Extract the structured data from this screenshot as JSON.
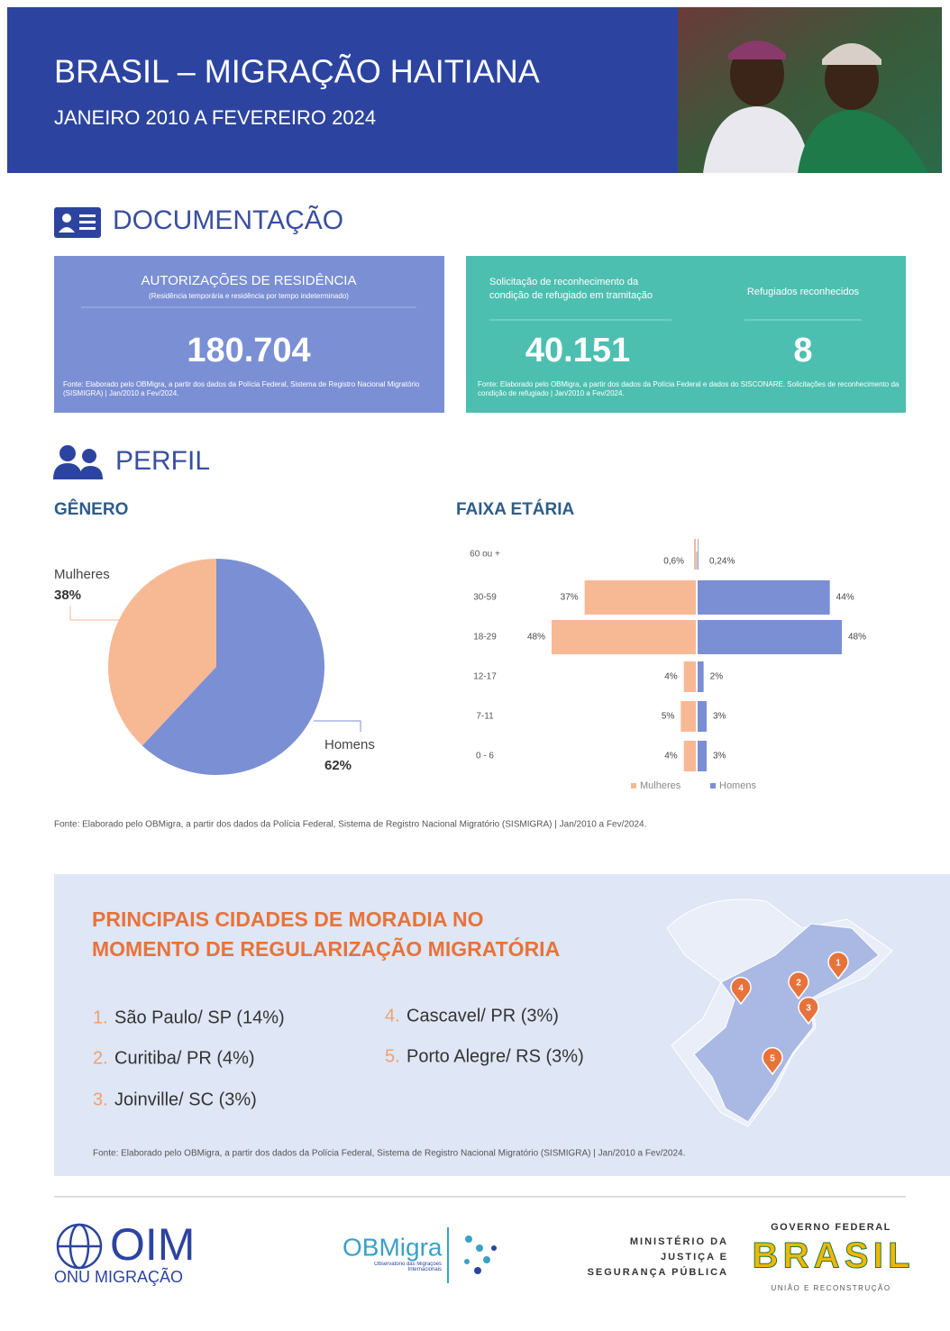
{
  "header": {
    "title": "BRASIL – MIGRAÇÃO HAITIANA",
    "subtitle": "JANEIRO 2010 A FEVEREIRO 2024"
  },
  "documentacao": {
    "title": "DOCUMENTAÇÃO",
    "card1": {
      "label": "AUTORIZAÇÕES DE RESIDÊNCIA",
      "sublabel": "(Residência temporária e residência por tempo indeterminado)",
      "value": "180.704",
      "source": "Fonte: Elaborado pelo OBMigra, a partir dos dados da Polícia Federal, Sistema de Registro Nacional Migratório (SISMIGRA) | Jan/2010 a Fev/2024."
    },
    "card2": {
      "items": [
        {
          "label": "Solicitação de reconhecimento da condição de refugiado em tramitação",
          "value": "40.151"
        },
        {
          "label": "Refugiados reconhecidos",
          "value": "8"
        }
      ],
      "source": "Fonte: Elaborado pelo OBMigra, a partir dos dados da Polícia Federal e dados do SISCONARE. Solicitações de reconhecimento da condição de refugiado | Jan/2010 a Fev/2024."
    }
  },
  "perfil": {
    "title": "PERFIL",
    "source": "Fonte: Elaborado pelo OBMigra, a partir dos dados da Polícia Federal, Sistema de Registro Nacional Migratório (SISMIGRA) | Jan/2010 a Fev/2024."
  },
  "chart_data": [
    {
      "type": "pie",
      "title": "GÊNERO",
      "categories": [
        "Mulheres",
        "Homens"
      ],
      "values": [
        38,
        62
      ],
      "value_labels": [
        "38%",
        "62%"
      ],
      "colors": [
        "#f7b894",
        "#7b8fd4"
      ]
    },
    {
      "type": "pyramid",
      "title": "FAIXA ETÁRIA",
      "categories": [
        "60 ou +",
        "30-59",
        "18-29",
        "12-17",
        "7-11",
        "0 - 6"
      ],
      "series": [
        {
          "name": "Mulheres",
          "color": "#f7b894",
          "values": [
            0.6,
            37,
            48,
            4,
            5,
            4
          ],
          "value_labels": [
            "0,6%",
            "37%",
            "48%",
            "4%",
            "5%",
            "4%"
          ]
        },
        {
          "name": "Homens",
          "color": "#7b8fd4",
          "values": [
            0.24,
            44,
            48,
            2,
            3,
            3
          ],
          "value_labels": [
            "0,24%",
            "44%",
            "48%",
            "2%",
            "3%",
            "3%"
          ]
        }
      ]
    }
  ],
  "cidades": {
    "title_lines": [
      "PRINCIPAIS CIDADES DE MORADIA NO",
      "MOMENTO DE REGULARIZAÇÃO MIGRATÓRIA"
    ],
    "items": [
      {
        "rank": "1.",
        "text": "São Paulo/ SP (14%)"
      },
      {
        "rank": "2.",
        "text": "Curitiba/ PR (4%)"
      },
      {
        "rank": "3.",
        "text": "Joinville/ SC (3%)"
      },
      {
        "rank": "4.",
        "text": "Cascavel/ PR (3%)"
      },
      {
        "rank": "5.",
        "text": "Porto Alegre/ RS (3%)"
      }
    ],
    "map_pins": [
      "1",
      "2",
      "3",
      "4",
      "5"
    ],
    "source": "Fonte: Elaborado pelo OBMigra, a partir dos dados da Polícia Federal, Sistema de Registro Nacional Migratório (SISMIGRA) | Jan/2010 a Fev/2024."
  },
  "footer": {
    "oim": "OIM",
    "oim_sub": "ONU MIGRAÇÃO",
    "obmigra": "OBMigra",
    "obmigra_sub": "Observatório das Migrações Internacionais",
    "ministerio": [
      "MINISTÉRIO DA",
      "JUSTIÇA E",
      "SEGURANÇA PÚBLICA"
    ],
    "governo": "GOVERNO FEDERAL",
    "brasil": "BRASIL",
    "governo_sub": "UNIÃO E RECONSTRUÇÃO"
  }
}
